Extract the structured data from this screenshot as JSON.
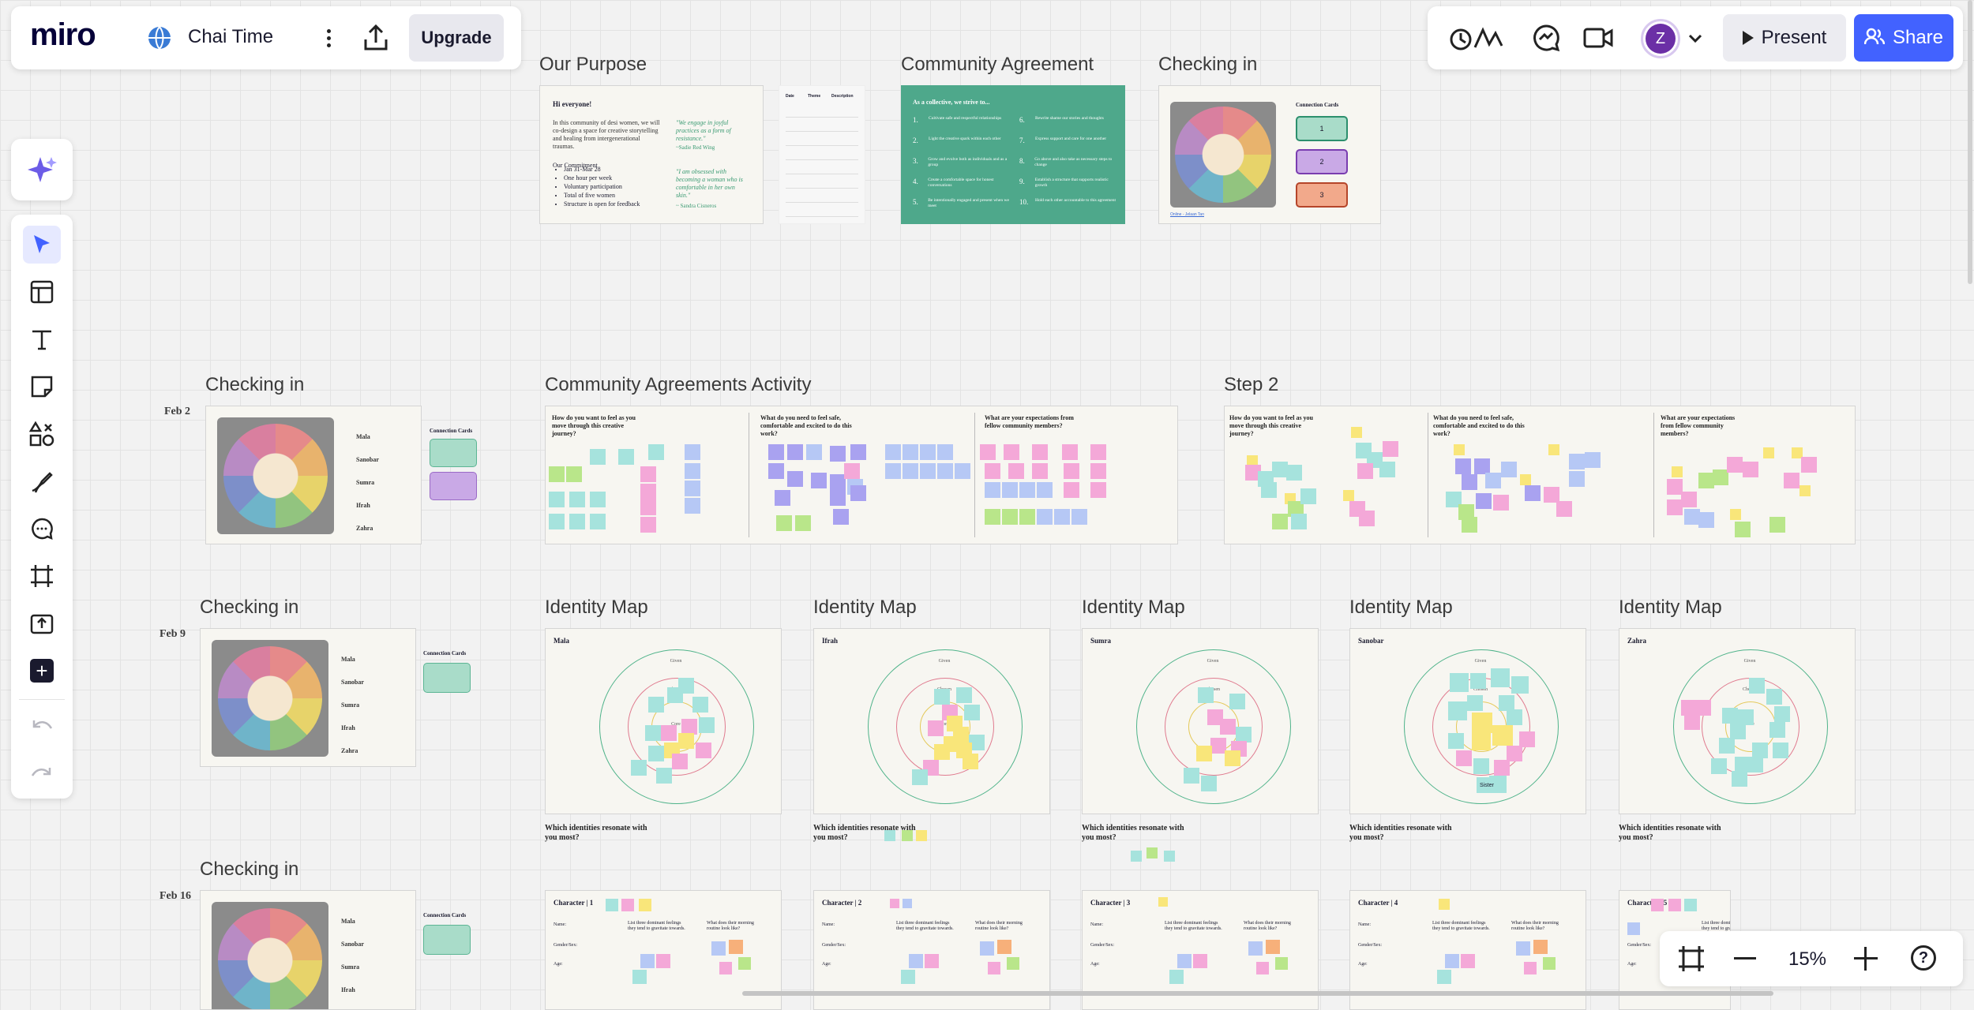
{
  "app": {
    "logo": "miro",
    "board_name": "Chai Time",
    "upgrade_label": "Upgrade"
  },
  "topbar_right": {
    "present_label": "Present",
    "share_label": "Share",
    "avatar_initial": "Z"
  },
  "zoom": {
    "level": "15%"
  },
  "colors": {
    "accent": "#4262ff",
    "avatar": "#6b2fa6",
    "teal_frame": "#4ea88b"
  },
  "toolbar_icons": [
    "ai-sparkle-icon",
    "select-cursor-icon",
    "templates-icon",
    "text-icon",
    "sticky-note-icon",
    "shapes-icon",
    "pen-icon",
    "comment-icon",
    "frame-icon",
    "upload-icon",
    "more-apps-icon",
    "undo-icon",
    "redo-icon"
  ],
  "frames": {
    "our_purpose": {
      "title": "Our Purpose",
      "greeting": "Hi everyone!",
      "intro": "In this community of desi women, we will co-design a space for creative storytelling and healing from intergenerational traumas.",
      "commitment_heading": "Our Commitment",
      "commitments": [
        "Jan 31-Mar 28",
        "One hour per week",
        "Voluntary participation",
        "Total of five women",
        "Structure is open for feedback"
      ],
      "quote1": "\"We engage in joyful practices as a form of resistance.\"",
      "quote1_author": "~Sadie Red Wing",
      "quote2": "\"I am obsessed with becoming a woman who is comfortable in her own skin.\"",
      "quote2_author": "~ Sandra Cisneros",
      "table_headers": [
        "Date",
        "Theme",
        "Description"
      ]
    },
    "community_agreement": {
      "title": "Community Agreement",
      "heading": "As a collective, we strive to...",
      "items": [
        {
          "n": "1.",
          "t": "Cultivate safe and respectful relationships"
        },
        {
          "n": "2.",
          "t": "Light the creative spark within each other"
        },
        {
          "n": "3.",
          "t": "Grow and evolve both as individuals and as a group"
        },
        {
          "n": "4.",
          "t": "Create a comfortable space for honest conversations"
        },
        {
          "n": "5.",
          "t": "Be intentionally engaged and present when we meet"
        },
        {
          "n": "6.",
          "t": "Rewrite shame our stories and thoughts"
        },
        {
          "n": "7.",
          "t": "Express support and care for one another"
        },
        {
          "n": "8.",
          "t": "Go above and also take as necessary steps to change"
        },
        {
          "n": "9.",
          "t": "Establish a structure that supports realistic growth"
        },
        {
          "n": "10.",
          "t": "Hold each other accountable to this agreement"
        }
      ]
    },
    "checkin_top": {
      "title": "Checking in",
      "cards_heading": "Connection Cards",
      "cards": [
        "1",
        "2",
        "3"
      ],
      "link": "Online - Jelaan Tan"
    },
    "checkin_feb2": {
      "title": "Checking in",
      "date": "Feb 2",
      "names": [
        "Mala",
        "Sanobar",
        "Sumra",
        "Ifrah",
        "Zahra"
      ],
      "cards_heading": "Connection Cards"
    },
    "activity": {
      "title": "Community Agreements Activity",
      "questions": [
        "How do you want to feel as you move through this creative journey?",
        "What do you need to feel safe, comfortable and excited to do this work?",
        "What are your expectations from fellow community members?"
      ]
    },
    "step2": {
      "title": "Step 2",
      "questions": [
        "How do you want to feel as you move through this creative journey?",
        "What do you need to feel safe, comfortable and excited to do this work?",
        "What are your expectations from fellow community members?"
      ]
    },
    "checkin_feb9": {
      "title": "Checking in",
      "date": "Feb 9",
      "names": [
        "Mala",
        "Sanobar",
        "Sumra",
        "Ifrah",
        "Zahra"
      ],
      "cards_heading": "Connection Cards"
    },
    "checkin_feb16": {
      "title": "Checking in",
      "date": "Feb 16",
      "names": [
        "Mala",
        "Sanobar",
        "Sumra",
        "Ifrah"
      ],
      "cards_heading": "Connection Cards"
    },
    "identity_maps": [
      {
        "title": "Identity Map",
        "name": "Mala"
      },
      {
        "title": "Identity Map",
        "name": "Ifrah"
      },
      {
        "title": "Identity Map",
        "name": "Sumra"
      },
      {
        "title": "Identity Map",
        "name": "Sanobar"
      },
      {
        "title": "Identity Map",
        "name": "Zahra"
      }
    ],
    "identity_rings": {
      "outer": "Given",
      "middle": "Chosen",
      "inner": "Core"
    },
    "identity_question": "Which identities resonate with you most?",
    "sanobar_notes": {
      "sister": "Sister"
    },
    "characters": [
      {
        "title": "Character | 1"
      },
      {
        "title": "Character | 2"
      },
      {
        "title": "Character | 3"
      },
      {
        "title": "Character | 4"
      },
      {
        "title": "Character | 5"
      }
    ],
    "character_fields": {
      "name": "Name:",
      "gender": "Gender/Sex:",
      "age": "Age:",
      "feelings": "List three dominant feelings they tend to gravitate towards.",
      "routine": "What does their morning routine look like?"
    }
  }
}
